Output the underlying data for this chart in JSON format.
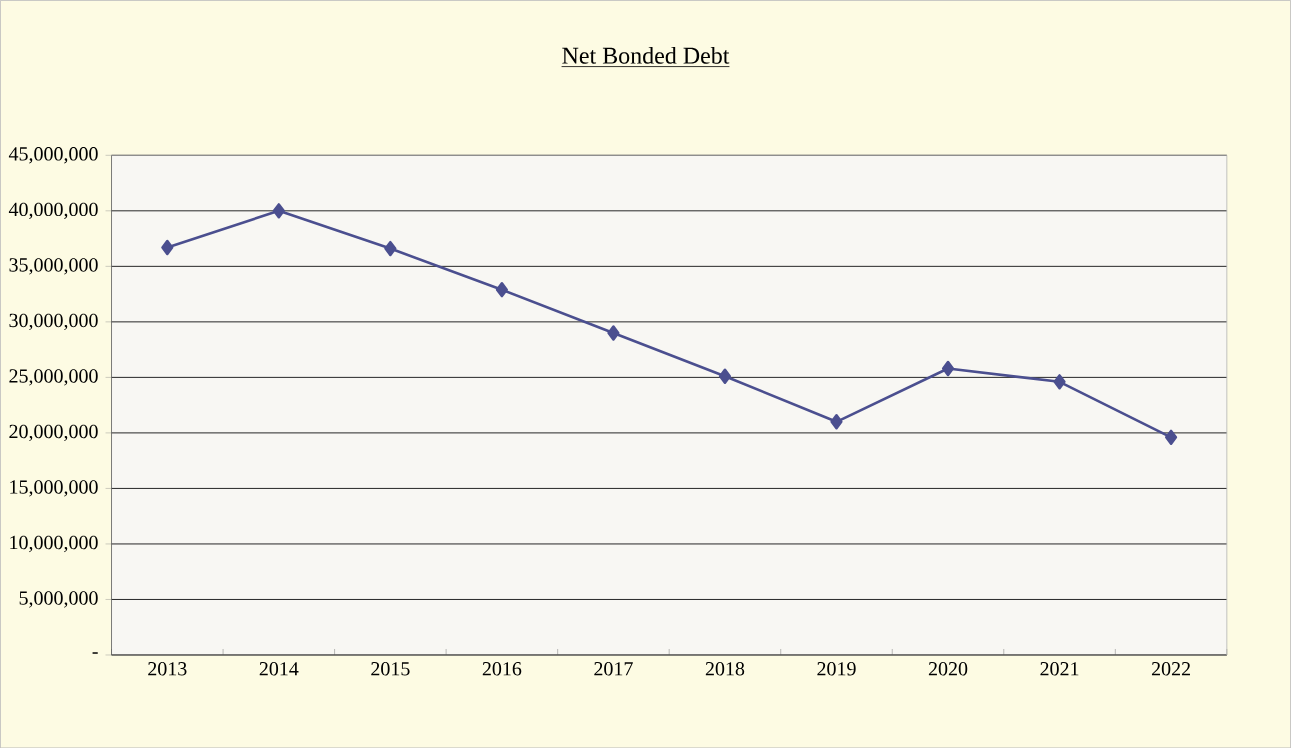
{
  "chart_data": {
    "type": "line",
    "title": "Net  Bonded Debt",
    "categories": [
      "2013",
      "2014",
      "2015",
      "2016",
      "2017",
      "2018",
      "2019",
      "2020",
      "2021",
      "2022"
    ],
    "series": [
      {
        "color": "#4b4f8f",
        "values": [
          36700000,
          40000000,
          36600000,
          32900000,
          29000000,
          25100000,
          21000000,
          25800000,
          24600000,
          19600000
        ]
      }
    ],
    "ylim": [
      0,
      45000000
    ],
    "yticks": [
      {
        "value": 0,
        "label": "-"
      },
      {
        "value": 5000000,
        "label": "5,000,000"
      },
      {
        "value": 10000000,
        "label": "10,000,000"
      },
      {
        "value": 15000000,
        "label": "15,000,000"
      },
      {
        "value": 20000000,
        "label": "20,000,000"
      },
      {
        "value": 25000000,
        "label": "25,000,000"
      },
      {
        "value": 30000000,
        "label": "30,000,000"
      },
      {
        "value": 35000000,
        "label": "35,000,000"
      },
      {
        "value": 40000000,
        "label": "40,000,000"
      },
      {
        "value": 45000000,
        "label": "45,000,000"
      }
    ],
    "grid": "y",
    "marker": "diamond",
    "line_style": "solid"
  }
}
